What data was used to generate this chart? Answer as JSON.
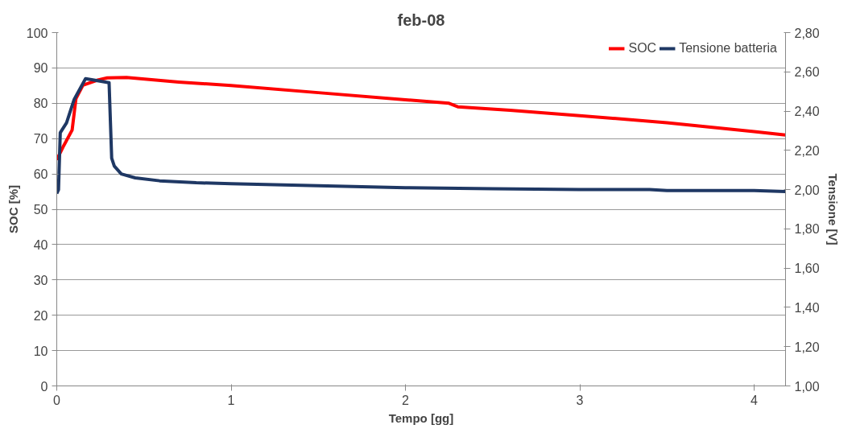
{
  "chart_data": {
    "type": "line",
    "title": "feb-08",
    "xlabel": "Tempo [gg]",
    "ylabel": "SOC [%]",
    "y2label": "Tensione [V]",
    "xlim": [
      0,
      4.18
    ],
    "xticks": [
      0,
      1,
      2,
      3,
      4
    ],
    "ylim": [
      0,
      100
    ],
    "yticks": [
      0,
      10,
      20,
      30,
      40,
      50,
      60,
      70,
      80,
      90,
      100
    ],
    "y2lim": [
      1.0,
      2.8
    ],
    "y2ticks": [
      {
        "value": 1.0,
        "label": "1,00"
      },
      {
        "value": 1.2,
        "label": "1,20"
      },
      {
        "value": 1.4,
        "label": "1,40"
      },
      {
        "value": 1.6,
        "label": "1,60"
      },
      {
        "value": 1.8,
        "label": "1,80"
      },
      {
        "value": 2.0,
        "label": "2,00"
      },
      {
        "value": 2.2,
        "label": "2,20"
      },
      {
        "value": 2.4,
        "label": "2,40"
      },
      {
        "value": 2.6,
        "label": "2,60"
      },
      {
        "value": 2.8,
        "label": "2,80"
      }
    ],
    "grid": "y",
    "legend": "top right",
    "marker": "none",
    "line_style": "solid",
    "series": [
      {
        "name": "SOC",
        "color": "#ff0000",
        "x": [
          0,
          0.04,
          0.088,
          0.11,
          0.15,
          0.23,
          0.29,
          0.4,
          0.7,
          1.0,
          1.5,
          2.0,
          2.25,
          2.3,
          2.6,
          3.0,
          3.5,
          4.0,
          4.18
        ],
        "values": [
          64,
          68,
          72.4,
          81.3,
          85.1,
          86.5,
          87.2,
          87.3,
          86,
          85,
          83,
          81,
          80,
          79,
          78,
          76.5,
          74.5,
          72,
          71
        ]
      },
      {
        "name": "Tensione batteria",
        "color": "#1f3864",
        "axis": "y2",
        "x": [
          0,
          0.01,
          0.02,
          0.056,
          0.1,
          0.165,
          0.2,
          0.3,
          0.315,
          0.33,
          0.37,
          0.45,
          0.59,
          0.8,
          1.0,
          1.5,
          2.0,
          2.5,
          3.0,
          3.4,
          3.5,
          4.0,
          4.18
        ],
        "values": [
          1.98,
          2.0,
          2.29,
          2.34,
          2.46,
          2.565,
          2.56,
          2.545,
          2.16,
          2.12,
          2.08,
          2.06,
          2.045,
          2.035,
          2.03,
          2.02,
          2.01,
          2.005,
          2.0,
          2.0,
          1.995,
          1.995,
          1.99
        ]
      }
    ]
  }
}
